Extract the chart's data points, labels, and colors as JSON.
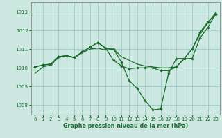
{
  "xlabel": "Graphe pression niveau de la mer (hPa)",
  "background_color": "#cce8e0",
  "grid_color": "#99cccc",
  "line_color": "#1a6b2a",
  "ylim": [
    1007.5,
    1013.5
  ],
  "xlim": [
    -0.5,
    23.5
  ],
  "yticks": [
    1008,
    1009,
    1010,
    1011,
    1012,
    1013
  ],
  "xticks": [
    0,
    1,
    2,
    3,
    4,
    5,
    6,
    7,
    8,
    9,
    10,
    11,
    12,
    13,
    14,
    15,
    16,
    17,
    18,
    19,
    20,
    21,
    22,
    23
  ],
  "series": [
    {
      "y": [
        1009.7,
        1010.05,
        1010.15,
        1010.55,
        1010.65,
        1010.55,
        1010.8,
        1011.0,
        1011.05,
        1010.95,
        1011.0,
        1010.6,
        1010.4,
        1010.2,
        1010.1,
        1010.05,
        1010.0,
        1010.0,
        1010.05,
        1010.5,
        1011.0,
        1011.8,
        1012.4,
        1012.95
      ],
      "marker": false,
      "linewidth": 0.9
    },
    {
      "y": [
        1010.05,
        1010.15,
        1010.2,
        1010.6,
        1010.65,
        1010.55,
        1010.85,
        1011.1,
        1011.35,
        1011.05,
        1011.0,
        1010.3,
        1009.3,
        1008.9,
        1008.25,
        1007.75,
        1007.8,
        1009.7,
        1010.5,
        1010.5,
        1011.0,
        1011.9,
        1012.45,
        1012.85
      ],
      "marker": true,
      "linewidth": 0.9
    },
    {
      "y": [
        1010.05,
        1010.15,
        1010.2,
        1010.6,
        1010.65,
        1010.55,
        1010.85,
        1011.1,
        1011.35,
        1011.05,
        1010.4,
        1010.1,
        1009.95,
        1010.0,
        1010.0,
        1010.0,
        1009.85,
        1009.85,
        1010.05,
        1010.5,
        1010.5,
        1011.6,
        1012.15,
        1012.9
      ],
      "marker": true,
      "linewidth": 0.9
    }
  ]
}
